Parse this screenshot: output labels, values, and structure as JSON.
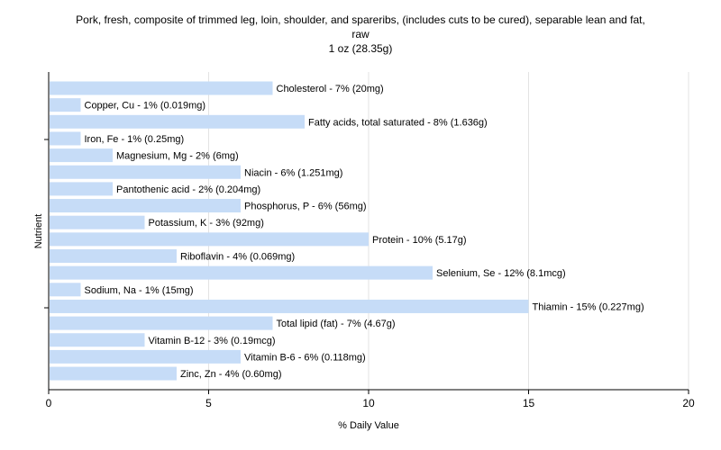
{
  "chart_data": {
    "type": "bar",
    "orientation": "horizontal",
    "title": "Pork, fresh, composite of trimmed leg, loin, shoulder, and spareribs, (includes cuts to be cured), separable lean and fat, raw",
    "title_lines": [
      "Pork, fresh, composite of trimmed leg, loin, shoulder, and spareribs, (includes cuts to be cured), separable lean and fat,",
      "raw",
      "1 oz (28.35g)"
    ],
    "subtitle": "1 oz (28.35g)",
    "xlabel": "% Daily Value",
    "ylabel": "Nutrient",
    "xlim": [
      0,
      20
    ],
    "xticks": [
      0,
      5,
      10,
      15,
      20
    ],
    "grid": true,
    "bar_color": "#c6dcf7",
    "categories": [
      "Cholesterol",
      "Copper, Cu",
      "Fatty acids, total saturated",
      "Iron, Fe",
      "Magnesium, Mg",
      "Niacin",
      "Pantothenic acid",
      "Phosphorus, P",
      "Potassium, K",
      "Protein",
      "Riboflavin",
      "Selenium, Se",
      "Sodium, Na",
      "Thiamin",
      "Total lipid (fat)",
      "Vitamin B-12",
      "Vitamin B-6",
      "Zinc, Zn"
    ],
    "values": [
      7,
      1,
      8,
      1,
      2,
      6,
      2,
      6,
      3,
      10,
      4,
      12,
      1,
      15,
      7,
      3,
      6,
      4
    ],
    "labels": [
      "Cholesterol - 7% (20mg)",
      "Copper, Cu - 1% (0.019mg)",
      "Fatty acids, total saturated - 8% (1.636g)",
      "Iron, Fe - 1% (0.25mg)",
      "Magnesium, Mg - 2% (6mg)",
      "Niacin - 6% (1.251mg)",
      "Pantothenic acid - 2% (0.204mg)",
      "Phosphorus, P - 6% (56mg)",
      "Potassium, K - 3% (92mg)",
      "Protein - 10% (5.17g)",
      "Riboflavin - 4% (0.069mg)",
      "Selenium, Se - 12% (8.1mcg)",
      "Sodium, Na - 1% (15mg)",
      "Thiamin - 15% (0.227mg)",
      "Total lipid (fat) - 7% (4.67g)",
      "Vitamin B-12 - 3% (0.19mcg)",
      "Vitamin B-6 - 6% (0.118mg)",
      "Zinc, Zn - 4% (0.60mg)"
    ]
  }
}
